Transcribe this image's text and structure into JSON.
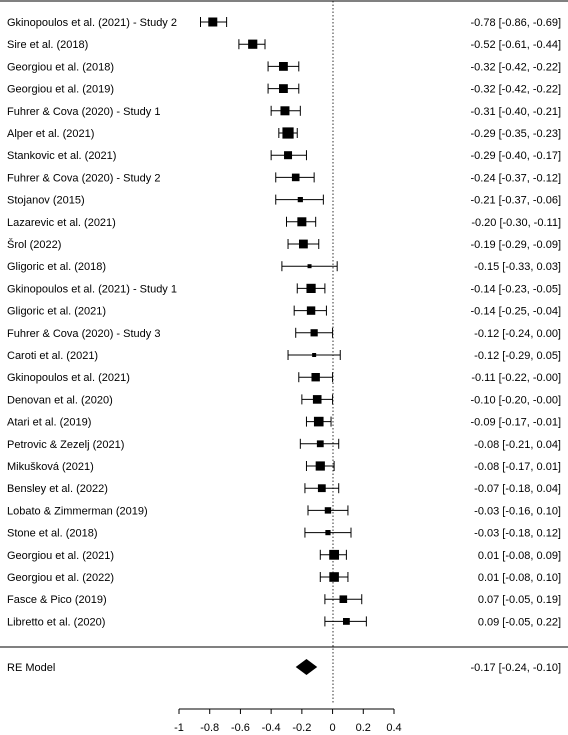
{
  "chart_data": {
    "type": "forest",
    "title": "",
    "xlabel": "",
    "ylabel": "",
    "xlim": [
      -1,
      0.4
    ],
    "xticks": [
      -1,
      -0.8,
      -0.6,
      -0.4,
      -0.2,
      0,
      0.2,
      0.4
    ],
    "xtick_labels": [
      "-1",
      "-0.8",
      "-0.6",
      "-0.4",
      "-0.2",
      "0",
      "0.2",
      "0.4"
    ],
    "reference_line": 0,
    "studies": [
      {
        "label": "Gkinopoulos et al. (2021) - Study 2",
        "estimate": -0.78,
        "lower": -0.86,
        "upper": -0.69,
        "ci_text": "-0.78 [-0.86, -0.69]",
        "weight": 3.5
      },
      {
        "label": "Sire et al. (2018)",
        "estimate": -0.52,
        "lower": -0.61,
        "upper": -0.44,
        "ci_text": "-0.52 [-0.61, -0.44]",
        "weight": 3.6
      },
      {
        "label": "Georgiou et al. (2018)",
        "estimate": -0.32,
        "lower": -0.42,
        "upper": -0.22,
        "ci_text": "-0.32 [-0.42, -0.22]",
        "weight": 3.4
      },
      {
        "label": "Georgiou et al. (2019)",
        "estimate": -0.32,
        "lower": -0.42,
        "upper": -0.22,
        "ci_text": "-0.32 [-0.42, -0.22]",
        "weight": 3.4
      },
      {
        "label": "Fuhrer & Cova (2020) - Study 1",
        "estimate": -0.31,
        "lower": -0.4,
        "upper": -0.21,
        "ci_text": "-0.31 [-0.40, -0.21]",
        "weight": 3.5
      },
      {
        "label": "Alper et al. (2021)",
        "estimate": -0.29,
        "lower": -0.35,
        "upper": -0.23,
        "ci_text": "-0.29 [-0.35, -0.23]",
        "weight": 4.6
      },
      {
        "label": "Stankovic et al. (2021)",
        "estimate": -0.29,
        "lower": -0.4,
        "upper": -0.17,
        "ci_text": "-0.29 [-0.40, -0.17]",
        "weight": 3.0
      },
      {
        "label": "Fuhrer & Cova (2020) - Study 2",
        "estimate": -0.24,
        "lower": -0.37,
        "upper": -0.12,
        "ci_text": "-0.24 [-0.37, -0.12]",
        "weight": 2.8
      },
      {
        "label": "Stojanov (2015)",
        "estimate": -0.21,
        "lower": -0.37,
        "upper": -0.06,
        "ci_text": "-0.21 [-0.37, -0.06]",
        "weight": 1.6
      },
      {
        "label": "Lazarevic et al. (2021)",
        "estimate": -0.2,
        "lower": -0.3,
        "upper": -0.11,
        "ci_text": "-0.20 [-0.30, -0.11]",
        "weight": 3.5
      },
      {
        "label": "Šrol (2022)",
        "estimate": -0.19,
        "lower": -0.29,
        "upper": -0.09,
        "ci_text": "-0.19 [-0.29, -0.09]",
        "weight": 3.4
      },
      {
        "label": "Gligoric et al. (2018)",
        "estimate": -0.15,
        "lower": -0.33,
        "upper": 0.03,
        "ci_text": "-0.15 [-0.33,  0.03]",
        "weight": 1.0
      },
      {
        "label": "Gkinopoulos et al. (2021) - Study 1",
        "estimate": -0.14,
        "lower": -0.23,
        "upper": -0.05,
        "ci_text": "-0.14 [-0.23, -0.05]",
        "weight": 3.6
      },
      {
        "label": "Gligoric et al. (2021)",
        "estimate": -0.14,
        "lower": -0.25,
        "upper": -0.04,
        "ci_text": "-0.14 [-0.25, -0.04]",
        "weight": 3.2
      },
      {
        "label": "Fuhrer & Cova (2020) - Study 3",
        "estimate": -0.12,
        "lower": -0.24,
        "upper": 0.0,
        "ci_text": "-0.12 [-0.24,  0.00]",
        "weight": 2.6
      },
      {
        "label": "Caroti et al. (2021)",
        "estimate": -0.12,
        "lower": -0.29,
        "upper": 0.05,
        "ci_text": "-0.12 [-0.29,  0.05]",
        "weight": 1.0
      },
      {
        "label": "Gkinopoulos et al. (2021)",
        "estimate": -0.11,
        "lower": -0.22,
        "upper": -0.0,
        "ci_text": "-0.11 [-0.22, -0.00]",
        "weight": 3.2
      },
      {
        "label": "Denovan et al. (2020)",
        "estimate": -0.1,
        "lower": -0.2,
        "upper": -0.0,
        "ci_text": "-0.10 [-0.20, -0.00]",
        "weight": 3.3
      },
      {
        "label": "Atari et al. (2019)",
        "estimate": -0.09,
        "lower": -0.17,
        "upper": -0.01,
        "ci_text": "-0.09 [-0.17, -0.01]",
        "weight": 3.8
      },
      {
        "label": "Petrovic & Zezelj (2021)",
        "estimate": -0.08,
        "lower": -0.21,
        "upper": 0.04,
        "ci_text": "-0.08 [-0.21,  0.04]",
        "weight": 2.4
      },
      {
        "label": "Mikušková (2021)",
        "estimate": -0.08,
        "lower": -0.17,
        "upper": 0.01,
        "ci_text": "-0.08 [-0.17,  0.01]",
        "weight": 3.6
      },
      {
        "label": "Bensley et al. (2022)",
        "estimate": -0.07,
        "lower": -0.18,
        "upper": 0.04,
        "ci_text": "-0.07 [-0.18,  0.04]",
        "weight": 2.9
      },
      {
        "label": "Lobato & Zimmerman (2019)",
        "estimate": -0.03,
        "lower": -0.16,
        "upper": 0.1,
        "ci_text": "-0.03 [-0.16,  0.10]",
        "weight": 2.2
      },
      {
        "label": "Stone et al. (2018)",
        "estimate": -0.03,
        "lower": -0.18,
        "upper": 0.12,
        "ci_text": "-0.03 [-0.18,  0.12]",
        "weight": 1.6
      },
      {
        "label": "Georgiou et al. (2021)",
        "estimate": 0.01,
        "lower": -0.08,
        "upper": 0.09,
        "ci_text": " 0.01 [-0.08,  0.09]",
        "weight": 3.9
      },
      {
        "label": "Georgiou et al. (2022)",
        "estimate": 0.01,
        "lower": -0.08,
        "upper": 0.1,
        "ci_text": " 0.01 [-0.08,  0.10]",
        "weight": 3.8
      },
      {
        "label": "Fasce & Pico (2019)",
        "estimate": 0.07,
        "lower": -0.05,
        "upper": 0.19,
        "ci_text": " 0.07 [-0.05,  0.19]",
        "weight": 2.8
      },
      {
        "label": "Libretto et al. (2020)",
        "estimate": 0.09,
        "lower": -0.05,
        "upper": 0.22,
        "ci_text": " 0.09 [-0.05,  0.22]",
        "weight": 2.4
      }
    ],
    "summary": {
      "label": "RE Model",
      "estimate": -0.17,
      "lower": -0.24,
      "upper": -0.1,
      "ci_text": "-0.17 [-0.24, -0.10]"
    }
  }
}
